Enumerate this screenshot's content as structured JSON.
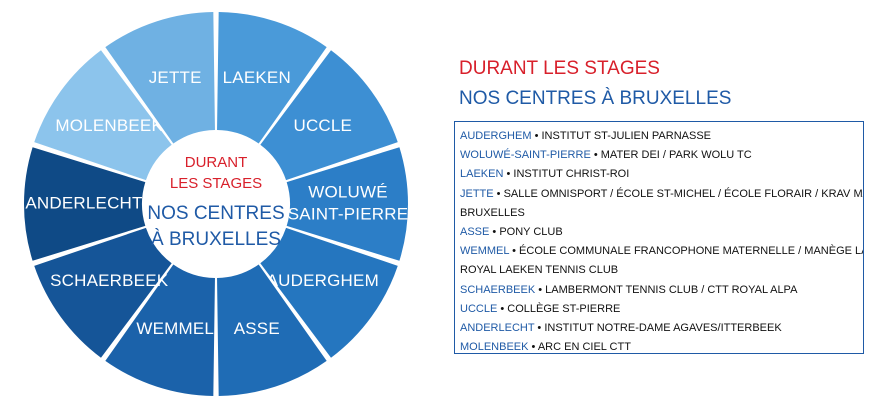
{
  "wheel": {
    "segments": [
      {
        "label_lines": [
          "LAEKEN"
        ],
        "color": "#4a9ad9"
      },
      {
        "label_lines": [
          "UCCLE"
        ],
        "color": "#3d8fd3"
      },
      {
        "label_lines": [
          "WOLUWÉ",
          "SAINT-PIERRE"
        ],
        "color": "#2c7ec7"
      },
      {
        "label_lines": [
          "AUDERGHEM"
        ],
        "color": "#2576bf"
      },
      {
        "label_lines": [
          "ASSE"
        ],
        "color": "#1f6cb5"
      },
      {
        "label_lines": [
          "WEMMEL"
        ],
        "color": "#1b62aa"
      },
      {
        "label_lines": [
          "SCHAERBEEK"
        ],
        "color": "#155598"
      },
      {
        "label_lines": [
          "ANDERLECHT"
        ],
        "color": "#0f4a86"
      },
      {
        "label_lines": [
          "MOLENBEEK"
        ],
        "color": "#8cc4ec"
      },
      {
        "label_lines": [
          "JETTE"
        ],
        "color": "#6fb1e3"
      }
    ],
    "center": {
      "red_lines": [
        "DURANT",
        "LES STAGES"
      ],
      "blue_lines": [
        "NOS CENTRES",
        "À BRUXELLES"
      ]
    }
  },
  "heading": {
    "line1": "DURANT LES STAGES",
    "line2": "NOS CENTRES À BRUXELLES"
  },
  "centres": [
    {
      "place": "AUDERGHEM",
      "text": " • INSTITUT ST-JULIEN PARNASSE"
    },
    {
      "place": "WOLUWÉ-SAINT-PIERRE",
      "text": " • MATER DEI / PARK WOLU TC"
    },
    {
      "place": "LAEKEN",
      "text": " • INSTITUT CHRIST-ROI"
    },
    {
      "place": "JETTE",
      "text": " • SALLE OMNISPORT / ÉCOLE ST-MICHEL / ÉCOLE FLORAIR / KRAV MAGA"
    },
    {
      "place": "",
      "text": "BRUXELLES"
    },
    {
      "place": "ASSE",
      "text": " • PONY CLUB"
    },
    {
      "place": "WEMMEL",
      "text": " •  ÉCOLE COMMUNALE FRANCOPHONE MATERNELLE / MANÈGE LA MOTTE /"
    },
    {
      "place": "",
      "text": "ROYAL LAEKEN TENNIS CLUB"
    },
    {
      "place": "SCHAERBEEK",
      "text": " • LAMBERMONT TENNIS CLUB / CTT ROYAL ALPA"
    },
    {
      "place": "UCCLE",
      "text": " • COLLÈGE ST-PIERRE"
    },
    {
      "place": "ANDERLECHT",
      "text": " •  INSTITUT NOTRE-DAME AGAVES/ITTERBEEK"
    },
    {
      "place": "MOLENBEEK",
      "text": " • ARC EN CIEL CTT"
    }
  ]
}
